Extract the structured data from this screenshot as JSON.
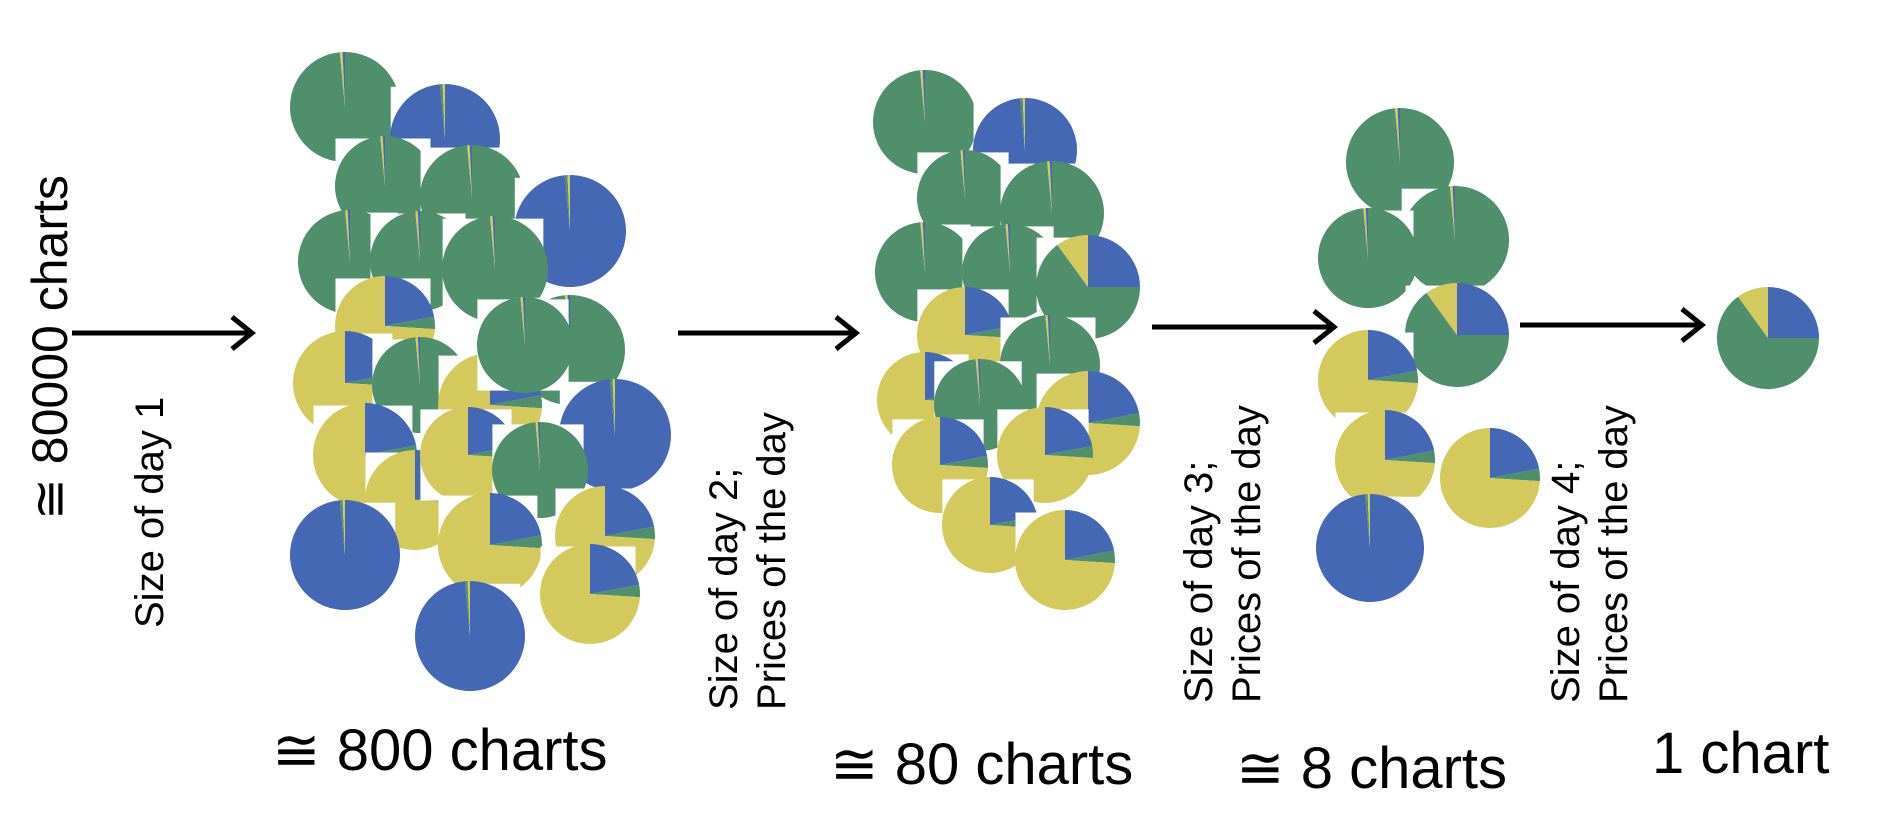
{
  "stages": [
    {
      "count_label": "≅ 80000 charts"
    },
    {
      "count_label": "≅ 800 charts"
    },
    {
      "count_label": "≅ 80 charts"
    },
    {
      "count_label": "≅ 8 charts"
    },
    {
      "count_label": "1 chart"
    }
  ],
  "steps": [
    {
      "lines": [
        "Size of day 1"
      ]
    },
    {
      "lines": [
        "Size of day 2;",
        "Prices of the day"
      ]
    },
    {
      "lines": [
        "Size of day 3;",
        "Prices of the day"
      ]
    },
    {
      "lines": [
        "Size of day 4;",
        "Prices of the day"
      ]
    }
  ],
  "colors": {
    "blue": "#4468b4",
    "green": "#4f8f6b",
    "yellow": "#d4c95c",
    "arrow": "#000000"
  },
  "chart_kinds": {
    "blue": {
      "name": "mostly-blue-pie",
      "slices": [
        {
          "color": "blue",
          "share": 0.985
        },
        {
          "color": "green",
          "share": 0.008
        },
        {
          "color": "yellow",
          "share": 0.007
        }
      ]
    },
    "green": {
      "name": "mostly-green-pie",
      "slices": [
        {
          "color": "green",
          "share": 0.985
        },
        {
          "color": "yellow",
          "share": 0.008
        },
        {
          "color": "blue",
          "share": 0.007
        }
      ]
    },
    "yellow": {
      "name": "mostly-yellow-pie",
      "slices": [
        {
          "color": "blue",
          "share": 0.22
        },
        {
          "color": "green",
          "share": 0.04
        },
        {
          "color": "yellow",
          "share": 0.74
        }
      ]
    },
    "mixedGreen": {
      "name": "mixed-green-pie",
      "slices": [
        {
          "color": "blue",
          "share": 0.25
        },
        {
          "color": "green",
          "share": 0.65
        },
        {
          "color": "yellow",
          "share": 0.1
        }
      ]
    }
  }
}
